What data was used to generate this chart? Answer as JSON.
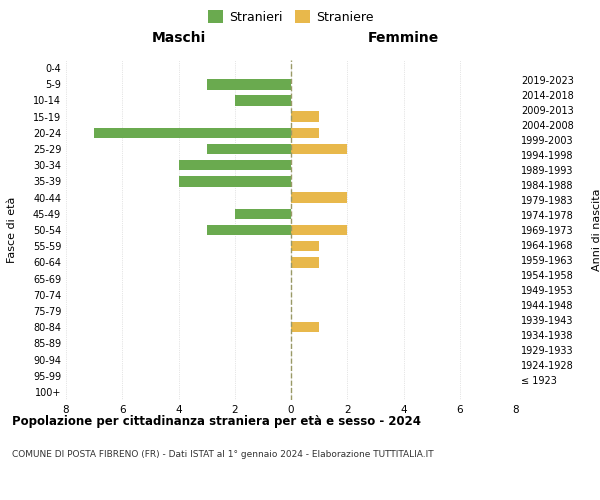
{
  "age_groups": [
    "100+",
    "95-99",
    "90-94",
    "85-89",
    "80-84",
    "75-79",
    "70-74",
    "65-69",
    "60-64",
    "55-59",
    "50-54",
    "45-49",
    "40-44",
    "35-39",
    "30-34",
    "25-29",
    "20-24",
    "15-19",
    "10-14",
    "5-9",
    "0-4"
  ],
  "birth_years": [
    "≤ 1923",
    "1924-1928",
    "1929-1933",
    "1934-1938",
    "1939-1943",
    "1944-1948",
    "1949-1953",
    "1954-1958",
    "1959-1963",
    "1964-1968",
    "1969-1973",
    "1974-1978",
    "1979-1983",
    "1984-1988",
    "1989-1993",
    "1994-1998",
    "1999-2003",
    "2004-2008",
    "2009-2013",
    "2014-2018",
    "2019-2023"
  ],
  "maschi": [
    0,
    0,
    0,
    0,
    0,
    0,
    0,
    0,
    0,
    0,
    3,
    2,
    0,
    4,
    4,
    3,
    7,
    0,
    2,
    3,
    0
  ],
  "femmine": [
    0,
    0,
    0,
    0,
    1,
    0,
    0,
    0,
    1,
    1,
    2,
    0,
    2,
    0,
    0,
    2,
    1,
    1,
    0,
    0,
    0
  ],
  "maschi_color": "#6aaa4f",
  "femmine_color": "#e8b84b",
  "title": "Popolazione per cittadinanza straniera per età e sesso - 2024",
  "subtitle": "COMUNE DI POSTA FIBRENO (FR) - Dati ISTAT al 1° gennaio 2024 - Elaborazione TUTTITALIA.IT",
  "legend_maschi": "Stranieri",
  "legend_femmine": "Straniere",
  "label_left": "Maschi",
  "label_right": "Femmine",
  "ylabel_left": "Fasce di età",
  "ylabel_right": "Anni di nascita",
  "xlim": 8,
  "background_color": "#ffffff",
  "grid_color": "#cccccc",
  "dashed_line_color": "#999966"
}
